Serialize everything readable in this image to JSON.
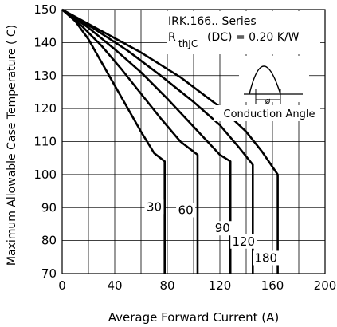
{
  "chart_data": {
    "type": "line",
    "xlabel": "Average Forward Current (A)",
    "ylabel": "Maximum Allowable Case Temperature ( C)",
    "xlim": [
      0,
      200
    ],
    "ylim": [
      70,
      150
    ],
    "xticks": [
      0,
      40,
      80,
      120,
      160,
      200
    ],
    "yticks": [
      70,
      80,
      90,
      100,
      110,
      120,
      130,
      140,
      150
    ],
    "grid": true,
    "annotation": {
      "series_title": "IRK.166.. Series",
      "rthjc_prefix": "R",
      "rthjc_sub": "thJC",
      "rthjc_rest": "(DC) = 0.20 K/W",
      "inset_label": "Conduction Angle",
      "phi": "ø"
    },
    "series": [
      {
        "name": "30",
        "points": [
          [
            0,
            150
          ],
          [
            10,
            146.5
          ],
          [
            20,
            141
          ],
          [
            30,
            134
          ],
          [
            40,
            127
          ],
          [
            50,
            120
          ],
          [
            60,
            113
          ],
          [
            70,
            106.5
          ],
          [
            78,
            104
          ],
          [
            78,
            70
          ]
        ]
      },
      {
        "name": "60",
        "points": [
          [
            0,
            150
          ],
          [
            15,
            145
          ],
          [
            30,
            139
          ],
          [
            45,
            132
          ],
          [
            60,
            124.5
          ],
          [
            75,
            117
          ],
          [
            90,
            110
          ],
          [
            103,
            106
          ],
          [
            103,
            70
          ]
        ]
      },
      {
        "name": "90",
        "points": [
          [
            0,
            150
          ],
          [
            20,
            144.5
          ],
          [
            40,
            138
          ],
          [
            60,
            131
          ],
          [
            80,
            123
          ],
          [
            100,
            114.5
          ],
          [
            120,
            106
          ],
          [
            128,
            104
          ],
          [
            128,
            70
          ]
        ]
      },
      {
        "name": "120",
        "points": [
          [
            0,
            150
          ],
          [
            25,
            144
          ],
          [
            50,
            137.5
          ],
          [
            75,
            130
          ],
          [
            100,
            122
          ],
          [
            120,
            115
          ],
          [
            135,
            108
          ],
          [
            145,
            103
          ],
          [
            145,
            70
          ]
        ]
      },
      {
        "name": "180",
        "points": [
          [
            0,
            150
          ],
          [
            30,
            143.5
          ],
          [
            60,
            137
          ],
          [
            90,
            129.5
          ],
          [
            120,
            120.5
          ],
          [
            140,
            113
          ],
          [
            152,
            107
          ],
          [
            164,
            100
          ],
          [
            164,
            70
          ]
        ]
      }
    ],
    "label_positions": [
      {
        "name": "30",
        "x": 70,
        "y": 89.5
      },
      {
        "name": "60",
        "x": 94,
        "y": 88.5
      },
      {
        "name": "90",
        "x": 122,
        "y": 83
      },
      {
        "name": "120",
        "x": 138,
        "y": 79
      },
      {
        "name": "180",
        "x": 155,
        "y": 74
      }
    ]
  }
}
